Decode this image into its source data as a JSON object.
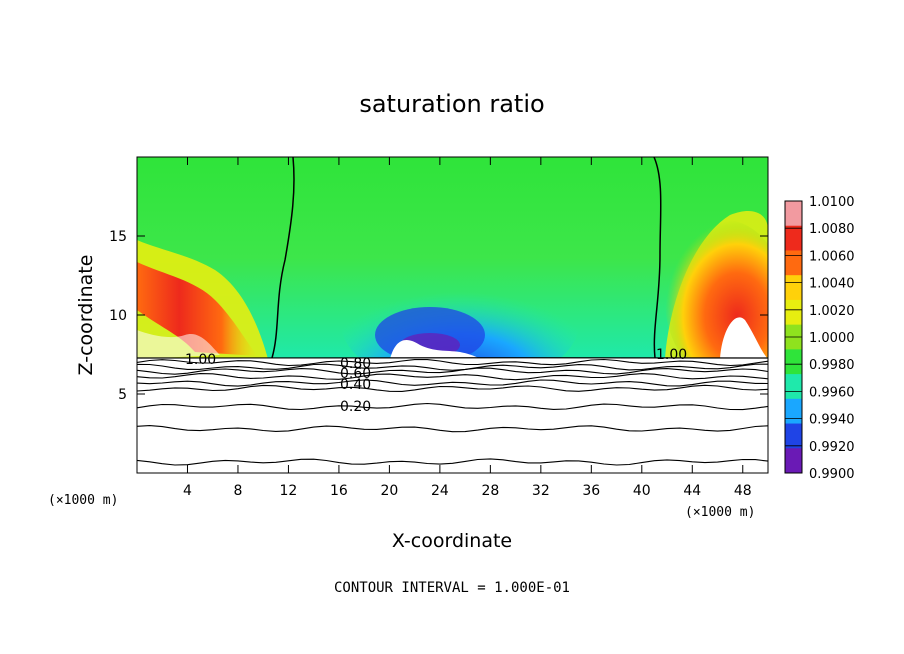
{
  "chart_data": {
    "type": "heatmap",
    "title": "saturation ratio",
    "xlabel": "X-coordinate",
    "ylabel": "Z-coordinate",
    "x_unit": "(×1000 m)",
    "x_unit_right": "(×1000 m)",
    "xlim": [
      0,
      50
    ],
    "ylim": [
      0,
      20
    ],
    "x_ticks": [
      "4",
      "8",
      "12",
      "16",
      "20",
      "24",
      "28",
      "32",
      "36",
      "40",
      "44",
      "48"
    ],
    "y_ticks": [
      "5",
      "10",
      "15"
    ],
    "footer": "CONTOUR INTERVAL = 1.000E-01",
    "colorbar": {
      "labels": [
        "1.0100",
        "1.0080",
        "1.0060",
        "1.0040",
        "1.0020",
        "1.0000",
        "0.9980",
        "0.9960",
        "0.9940",
        "0.9920",
        "0.9900"
      ],
      "colors": [
        "#f29aa0",
        "#ee2a1c",
        "#ff6a10",
        "#ffd10a",
        "#e7ee10",
        "#8fe21e",
        "#2fe43a",
        "#1fe9ab",
        "#1aa7ff",
        "#1f44e6",
        "#6a1ab5"
      ]
    },
    "contour_labels": [
      "1.00",
      "1.00",
      "0.80",
      "0.60",
      "0.40",
      "0.20"
    ],
    "contour_levels": [
      1.0,
      0.9,
      0.8,
      0.7,
      0.6,
      0.5,
      0.4,
      0.3,
      0.2,
      0.1
    ],
    "cloud_base_z": 7.3
  }
}
